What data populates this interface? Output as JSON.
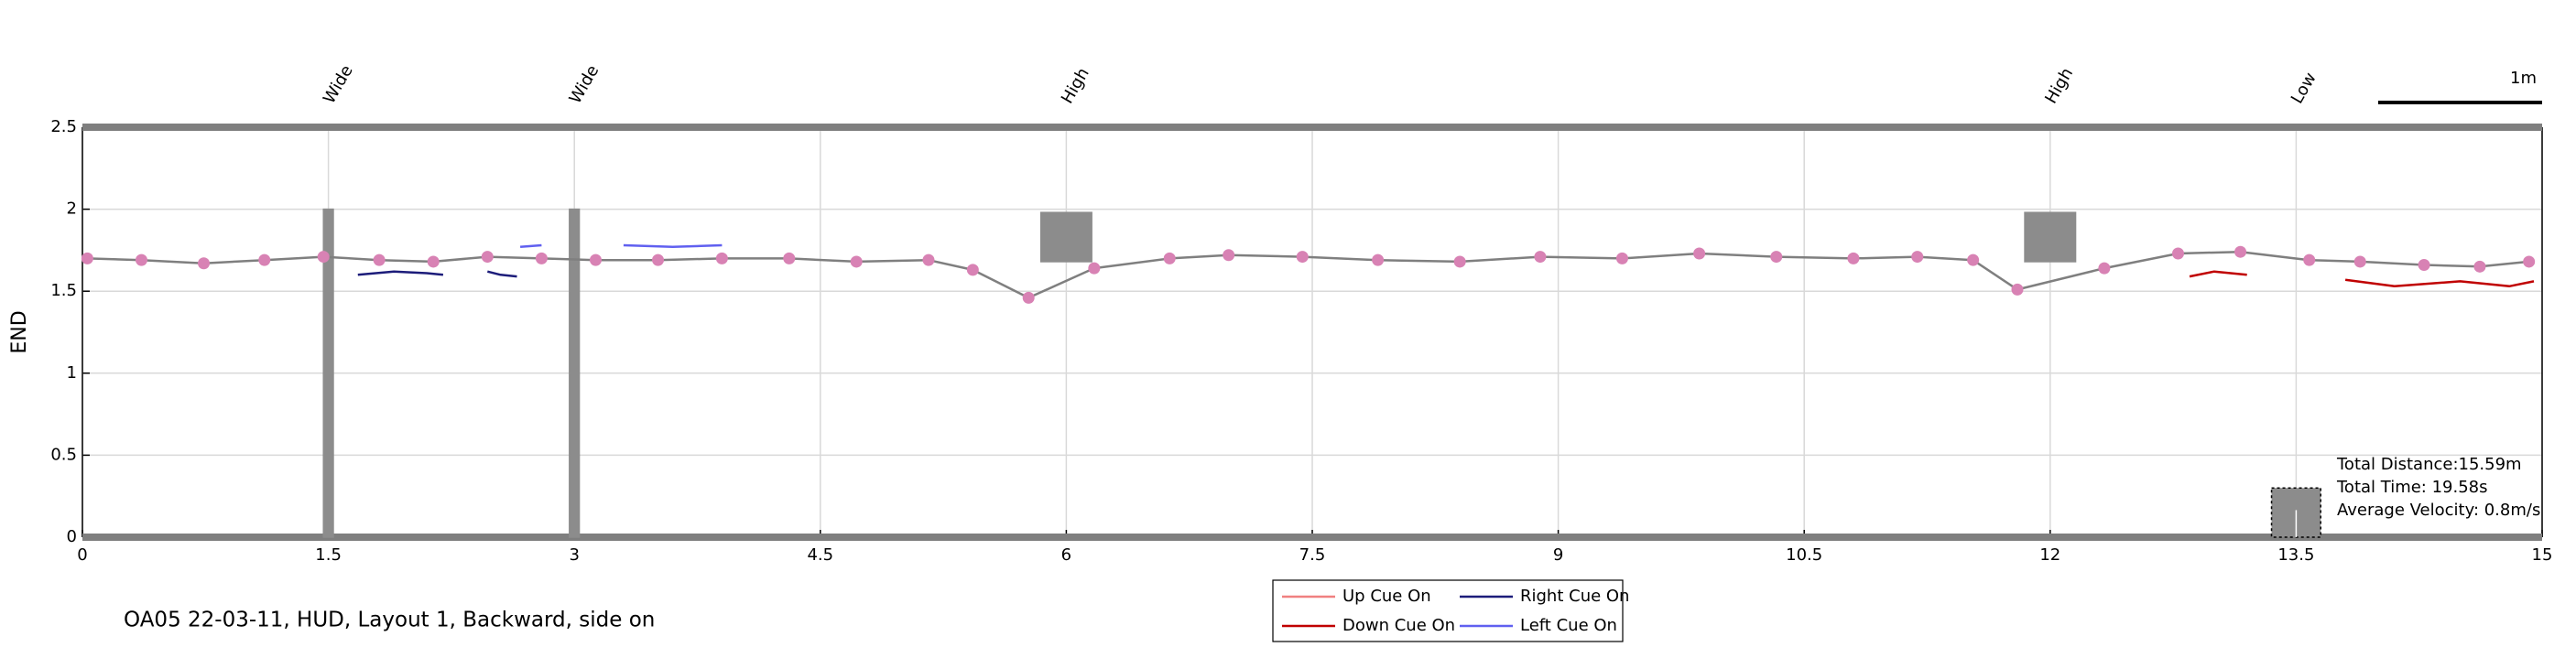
{
  "chart_data": {
    "type": "trajectory",
    "y_label": "END",
    "xlim": [
      0,
      15
    ],
    "ylim": [
      0,
      2.5
    ],
    "xticks": [
      0,
      1.5,
      3,
      4.5,
      6,
      7.5,
      9,
      10.5,
      12,
      13.5,
      15
    ],
    "yticks": [
      0,
      0.5,
      1,
      1.5,
      2,
      2.5
    ],
    "grid": true,
    "trajectory": {
      "line_color": "#7f7f7f",
      "marker_color": "#d882b4",
      "x": [
        0.03,
        0.36,
        0.74,
        1.11,
        1.47,
        1.81,
        2.14,
        2.47,
        2.8,
        3.13,
        3.51,
        3.9,
        4.31,
        4.72,
        5.16,
        5.43,
        5.77,
        6.17,
        6.63,
        6.99,
        7.44,
        7.9,
        8.4,
        8.89,
        9.39,
        9.86,
        10.33,
        10.8,
        11.19,
        11.53,
        11.8,
        12.33,
        12.78,
        13.16,
        13.58,
        13.89,
        14.28,
        14.62,
        14.92
      ],
      "values": [
        1.7,
        1.69,
        1.67,
        1.69,
        1.71,
        1.69,
        1.68,
        1.71,
        1.7,
        1.69,
        1.69,
        1.7,
        1.7,
        1.68,
        1.69,
        1.63,
        1.46,
        1.64,
        1.7,
        1.72,
        1.71,
        1.69,
        1.68,
        1.71,
        1.7,
        1.73,
        1.71,
        1.7,
        1.71,
        1.69,
        1.51,
        1.64,
        1.73,
        1.74,
        1.69,
        1.68,
        1.66,
        1.65,
        1.68
      ]
    },
    "series": [
      {
        "name": "Up Cue On",
        "color": "#f08080",
        "x": [],
        "values": []
      },
      {
        "name": "Right Cue On",
        "color": "#1c1c7a",
        "x": [
          1.68,
          1.9,
          2.1,
          2.2,
          null,
          2.47,
          2.55,
          2.65
        ],
        "values": [
          1.6,
          1.62,
          1.61,
          1.6,
          null,
          1.62,
          1.6,
          1.59
        ]
      },
      {
        "name": "Down Cue On",
        "color": "#c00000",
        "x": [
          12.85,
          13.0,
          13.2,
          null,
          13.8,
          14.1,
          14.5,
          14.8,
          14.95
        ],
        "values": [
          1.59,
          1.62,
          1.6,
          null,
          1.57,
          1.53,
          1.56,
          1.53,
          1.56
        ]
      },
      {
        "name": "Left Cue On",
        "color": "#6060f0",
        "x": [
          2.67,
          2.8,
          null,
          3.3,
          3.6,
          3.9
        ],
        "values": [
          1.77,
          1.78,
          null,
          1.78,
          1.77,
          1.78
        ]
      }
    ],
    "obstacles": [
      {
        "x": 1.5,
        "width": 0.06,
        "y": [
          0,
          2
        ]
      },
      {
        "x": 3,
        "width": 0.06,
        "y": [
          0,
          2
        ]
      },
      {
        "x": 6,
        "width": 0.31,
        "y": [
          1.68,
          1.98
        ]
      },
      {
        "x": 12,
        "width": 0.31,
        "y": [
          1.68,
          1.98
        ]
      },
      {
        "x": 13.5,
        "width": 0.3,
        "y": [
          0,
          0.3
        ]
      }
    ],
    "annotations": [
      {
        "x": 1.5,
        "text": "Wide"
      },
      {
        "x": 3,
        "text": "Wide"
      },
      {
        "x": 6,
        "text": "High"
      },
      {
        "x": 12,
        "text": "High"
      },
      {
        "x": 13.5,
        "text": "Low"
      }
    ],
    "scale_bar": {
      "label": "1m",
      "length": 1
    },
    "stats": [
      "Total Distance:15.59m",
      "Total Time: 19.58s",
      "Average Velocity: 0.8m/s"
    ],
    "caption": "OA05 22-03-11, HUD, Layout 1, Backward, side on"
  }
}
